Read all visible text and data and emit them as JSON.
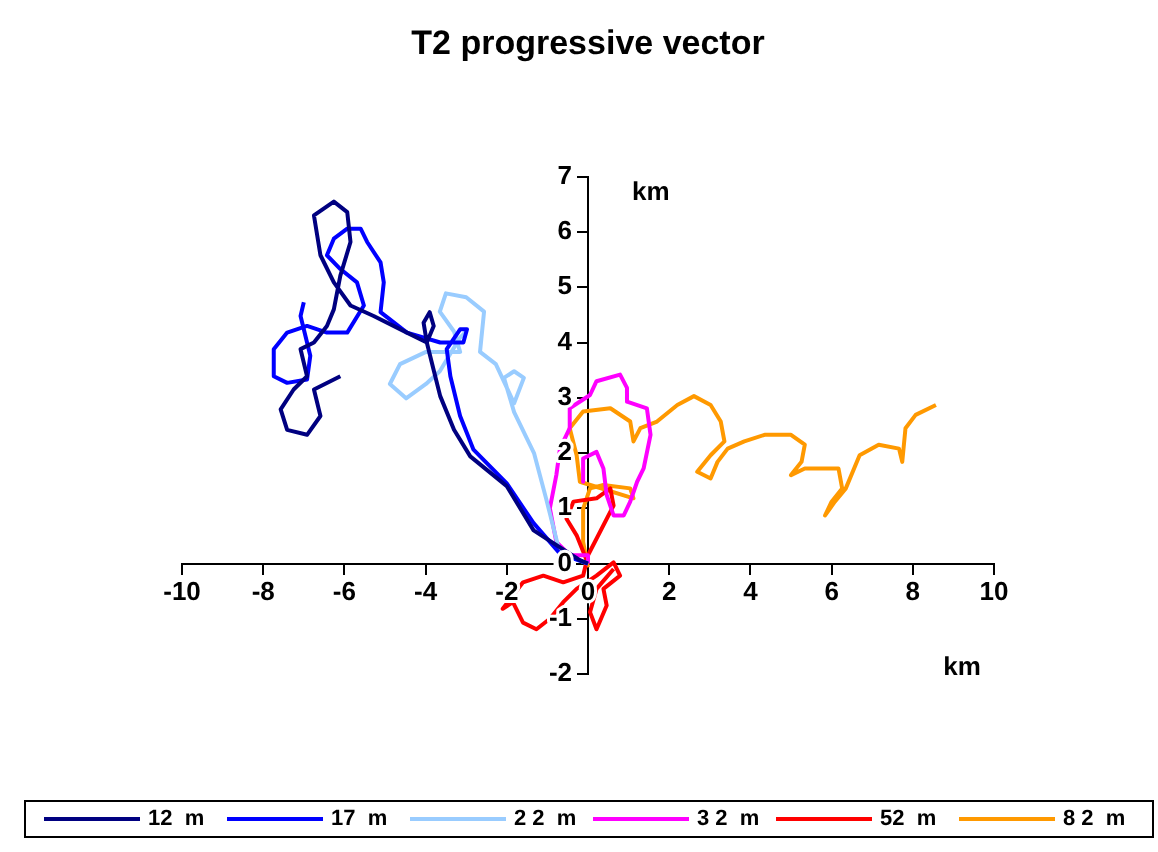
{
  "chart_data": {
    "type": "line",
    "title": "T2 progressive vector",
    "xlabel": "km",
    "ylabel": "km",
    "xlim": [
      -10,
      10
    ],
    "ylim": [
      -2,
      7
    ],
    "xticks": [
      -10,
      -8,
      -6,
      -4,
      -2,
      0,
      2,
      4,
      6,
      8,
      10
    ],
    "yticks": [
      -2,
      -1,
      0,
      1,
      2,
      3,
      4,
      5,
      6,
      7
    ],
    "grid": false,
    "legend": "bottom",
    "marker": "none",
    "line_style": "solid",
    "series": [
      {
        "name": "12  m",
        "color": "#000080",
        "x": [
          0,
          -0.2,
          -1.34,
          -2.0,
          -2.9,
          -3.3,
          -3.64,
          -3.8,
          -3.97,
          -4.05,
          -3.9,
          -3.8,
          -3.97,
          -4.46,
          -5.28,
          -5.85,
          -6.26,
          -6.59,
          -6.75,
          -6.26,
          -5.93,
          -5.85,
          -6.1,
          -6.26,
          -6.43,
          -6.75,
          -7.08,
          -6.92,
          -7.25,
          -7.57,
          -7.41,
          -6.92,
          -6.59,
          -6.75,
          -6.1
        ],
        "values": [
          0,
          0.06,
          0.6,
          1.4,
          1.94,
          2.42,
          3.03,
          3.5,
          4.0,
          4.36,
          4.55,
          4.3,
          4.0,
          4.18,
          4.48,
          4.67,
          5.09,
          5.58,
          6.3,
          6.55,
          6.36,
          5.82,
          5.21,
          4.6,
          4.3,
          4.0,
          3.88,
          3.39,
          3.15,
          2.79,
          2.42,
          2.33,
          2.67,
          3.15,
          3.39
        ]
      },
      {
        "name": "17  m",
        "color": "#0000ff",
        "x": [
          0,
          -0.69,
          -1.34,
          -2.0,
          -2.82,
          -3.15,
          -3.39,
          -3.48,
          -3.15,
          -2.98,
          -3.07,
          -3.64,
          -4.46,
          -5.11,
          -5.03,
          -5.11,
          -5.44,
          -5.6,
          -5.93,
          -6.26,
          -6.43,
          -6.1,
          -5.69,
          -5.52,
          -5.93,
          -6.43,
          -6.92,
          -7.41,
          -7.74,
          -7.74,
          -7.41,
          -6.92,
          -6.84,
          -7.08,
          -7.0
        ],
        "values": [
          0,
          0.18,
          0.73,
          1.45,
          2.06,
          2.67,
          3.39,
          3.88,
          4.24,
          4.24,
          4.0,
          4.0,
          4.18,
          4.55,
          5.09,
          5.45,
          5.82,
          6.06,
          6.06,
          5.88,
          5.58,
          5.33,
          5.09,
          4.67,
          4.18,
          4.18,
          4.3,
          4.18,
          3.88,
          3.39,
          3.27,
          3.33,
          3.76,
          4.48,
          4.73
        ]
      },
      {
        "name": "2 2  m",
        "color": "#99ccff",
        "x": [
          0,
          -0.69,
          -1.03,
          -1.33,
          -1.82,
          -2.07,
          -1.82,
          -1.58,
          -1.82,
          -2.27,
          -2.66,
          -2.56,
          -3.0,
          -3.5,
          -3.65,
          -3.3,
          -3.15,
          -3.99,
          -4.63,
          -4.88,
          -4.48,
          -3.99,
          -3.65,
          -3.15,
          -3.0
        ],
        "values": [
          0,
          0.18,
          1.17,
          2.0,
          2.74,
          3.36,
          3.48,
          3.36,
          2.9,
          3.61,
          3.83,
          4.56,
          4.82,
          4.89,
          4.56,
          4.2,
          3.83,
          3.83,
          3.61,
          3.25,
          2.99,
          3.25,
          3.48,
          4.09,
          4.2
        ]
      },
      {
        "name": "3 2  m",
        "color": "#ff00ff",
        "x": [
          0,
          0,
          -0.45,
          -0.78,
          -0.94,
          -0.78,
          -0.69,
          -0.45,
          -0.45,
          0.05,
          0.21,
          0.79,
          0.96,
          0.96,
          1.45,
          1.54,
          1.37,
          1.21,
          1.04,
          0.88,
          0.63,
          0.46,
          0.38,
          0.21,
          -0.12,
          -0.12
        ],
        "values": [
          0,
          0.15,
          0.15,
          0.39,
          1.0,
          1.6,
          2.08,
          2.45,
          2.81,
          3.05,
          3.3,
          3.42,
          3.18,
          2.93,
          2.81,
          2.33,
          1.72,
          1.48,
          1.12,
          0.87,
          0.87,
          1.24,
          1.72,
          2.02,
          1.9,
          1.48
        ]
      },
      {
        "name": "52  m",
        "color": "#ff0000",
        "x": [
          0,
          -0.28,
          -0.53,
          -0.36,
          0.21,
          0.55,
          0.63,
          0,
          -0.12,
          -0.61,
          -1.1,
          -1.6,
          -2.1,
          -1.85,
          -1.6,
          -1.27,
          -0.94,
          -0.61,
          -0.28,
          0.21,
          0.63,
          0.79,
          0.38,
          0.46,
          0.21,
          0.05,
          0.21,
          0.63
        ],
        "values": [
          0,
          0.51,
          0.81,
          1.12,
          1.18,
          1.36,
          1.05,
          0.15,
          -0.22,
          -0.34,
          -0.22,
          -0.34,
          -0.82,
          -0.7,
          -1.07,
          -1.19,
          -1.0,
          -0.7,
          -0.46,
          -0.22,
          0.02,
          -0.22,
          -0.46,
          -0.76,
          -1.19,
          -0.88,
          -0.46,
          -0.1
        ]
      },
      {
        "name": "8 2  m",
        "color": "#ff9900",
        "x": [
          0,
          -0.12,
          -0.12,
          0.05,
          0.38,
          1.04,
          1.12,
          -0.2,
          -0.28,
          -0.45,
          -0.12,
          0.55,
          1.04,
          1.12,
          1.29,
          1.7,
          2.2,
          2.61,
          3.02,
          3.27,
          3.36,
          3.02,
          2.69,
          3.02,
          3.19,
          3.44,
          3.85,
          4.35,
          5.0,
          5.34,
          5.26,
          5.0,
          5.34,
          6.17,
          6.26,
          6.0,
          5.84,
          6.08,
          6.35,
          6.69,
          7.16,
          7.66,
          7.74,
          7.82,
          8.07,
          8.57
        ],
        "values": [
          -0.07,
          0.39,
          0.99,
          1.36,
          1.42,
          1.36,
          1.18,
          1.48,
          1.96,
          2.45,
          2.75,
          2.81,
          2.57,
          2.21,
          2.45,
          2.57,
          2.87,
          3.03,
          2.87,
          2.57,
          2.21,
          1.96,
          1.66,
          1.54,
          1.84,
          2.08,
          2.21,
          2.33,
          2.33,
          2.15,
          1.84,
          1.6,
          1.72,
          1.72,
          1.36,
          1.12,
          0.87,
          1.12,
          1.36,
          1.96,
          2.15,
          2.08,
          1.84,
          2.45,
          2.69,
          2.87
        ]
      }
    ]
  }
}
